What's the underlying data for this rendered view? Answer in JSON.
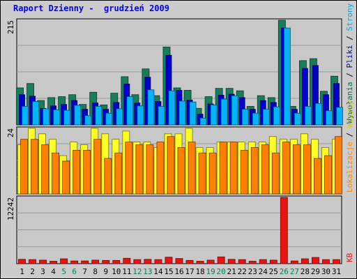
{
  "title": "Raport Dzienny -  grudzień 2009",
  "chart_data": {
    "type": "bar",
    "categories": [
      "1",
      "2",
      "3",
      "4",
      "5",
      "6",
      "7",
      "8",
      "9",
      "10",
      "11",
      "12",
      "13",
      "14",
      "15",
      "16",
      "17",
      "18",
      "19",
      "20",
      "21",
      "22",
      "23",
      "24",
      "25",
      "26",
      "27",
      "28",
      "29",
      "30",
      "31"
    ],
    "weekend_days": [
      "5",
      "6",
      "12",
      "13",
      "19",
      "20",
      "26",
      "27"
    ],
    "panels": [
      {
        "max_label": "215",
        "ylim": [
          0,
          215
        ],
        "right_label": [
          {
            "text": "Wywołania",
            "color": "#006c4b"
          },
          {
            "text": " / ",
            "color": "#000000"
          },
          {
            "text": "Pliki",
            "color": "#0000aa"
          },
          {
            "text": " / ",
            "color": "#000000"
          },
          {
            "text": "Strony",
            "color": "#00a8e6"
          }
        ],
        "series": [
          {
            "name": "Wywołania",
            "color": "#187e5a",
            "values": [
              76,
              85,
              50,
              56,
              58,
              62,
              42,
              67,
              41,
              65,
              99,
              62,
              115,
              60,
              160,
              76,
              71,
              34,
              58,
              75,
              75,
              70,
              38,
              60,
              56,
              215,
              38,
              132,
              136,
              69,
              100
            ]
          },
          {
            "name": "Pliki",
            "color": "#0000cc",
            "values": [
              62,
              59,
              34,
              39,
              42,
              50,
              32,
              45,
              32,
              46,
              84,
              45,
              98,
              48,
              143,
              71,
              51,
              22,
              43,
              61,
              63,
              56,
              32,
              50,
              46,
              199,
              32,
              116,
              122,
              62,
              85
            ]
          },
          {
            "name": "Strony",
            "color": "#00b4ff",
            "values": [
              38,
              48,
              33,
              31,
              30,
              40,
              19,
              38,
              24,
              33,
              58,
              39,
              72,
              38,
              70,
              49,
              47,
              14,
              41,
              53,
              60,
              32,
              24,
              32,
              37,
              199,
              24,
              38,
              44,
              29,
              36
            ]
          }
        ]
      },
      {
        "max_label": "24",
        "ylim": [
          0,
          24
        ],
        "right_label": [
          {
            "text": "Lokalizacje",
            "color": "#ff8800"
          },
          {
            "text": " / ",
            "color": "#000000"
          },
          {
            "text": "Wizyty",
            "color": "#d6c800"
          }
        ],
        "series": [
          {
            "name": "Wizyty",
            "color": "#ffff22",
            "values": [
              18,
              24,
              22,
              20,
              14,
              19,
              18,
              24,
              22,
              20,
              23,
              19,
              19,
              17,
              22,
              22,
              24,
              17,
              17,
              19,
              19,
              19,
              19,
              19,
              21,
              20,
              20,
              22,
              20,
              17,
              20
            ]
          },
          {
            "name": "Lokalizacje",
            "color": "#ff7f00",
            "values": [
              20,
              20,
              18,
              15,
              12,
              16,
              16,
              20,
              13,
              15,
              19,
              18,
              18,
              19,
              21,
              17,
              19,
              15,
              15,
              19,
              19,
              16,
              17,
              18,
              15,
              19,
              18,
              18,
              13,
              14,
              21
            ]
          }
        ]
      },
      {
        "max_label": "12242",
        "ylim": [
          0,
          12242
        ],
        "right_label": [
          {
            "text": "KB",
            "color": "#ee1111"
          }
        ],
        "series": [
          {
            "name": "KB",
            "color": "#ee1111",
            "values": [
              800,
              750,
              650,
              450,
              900,
              500,
              500,
              650,
              600,
              600,
              1000,
              750,
              800,
              750,
              1200,
              950,
              600,
              450,
              650,
              1250,
              800,
              750,
              450,
              750,
              650,
              12242,
              500,
              900,
              1150,
              750,
              750
            ]
          }
        ]
      }
    ]
  }
}
